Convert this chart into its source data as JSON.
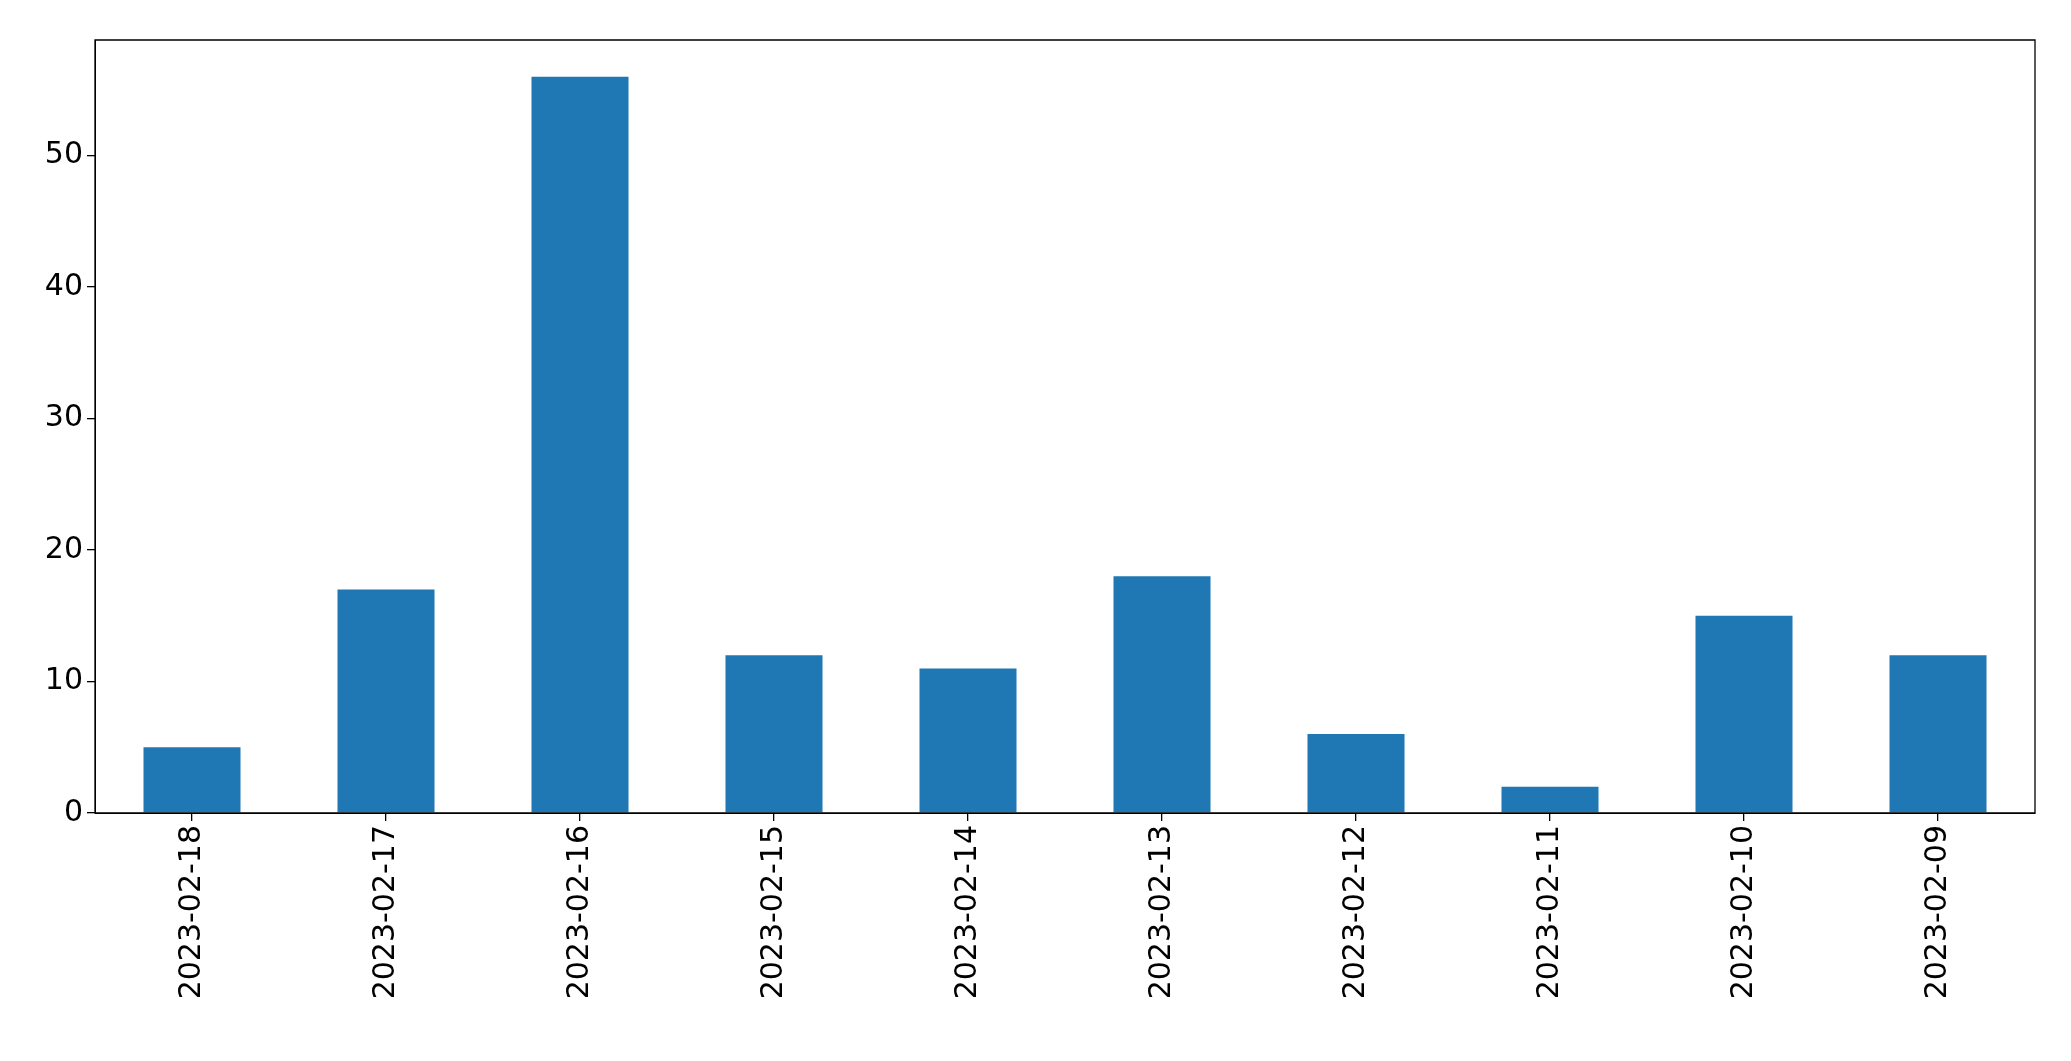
{
  "chart_data": {
    "type": "bar",
    "categories": [
      "2023-02-18",
      "2023-02-17",
      "2023-02-16",
      "2023-02-15",
      "2023-02-14",
      "2023-02-13",
      "2023-02-12",
      "2023-02-11",
      "2023-02-10",
      "2023-02-09"
    ],
    "values": [
      5,
      17,
      56,
      12,
      11,
      18,
      6,
      2,
      15,
      12
    ],
    "color": "#1f77b4",
    "ylim": [
      0,
      58.8
    ],
    "yticks": [
      0,
      10,
      20,
      30,
      40,
      50
    ],
    "grid": false,
    "legend": false
  }
}
